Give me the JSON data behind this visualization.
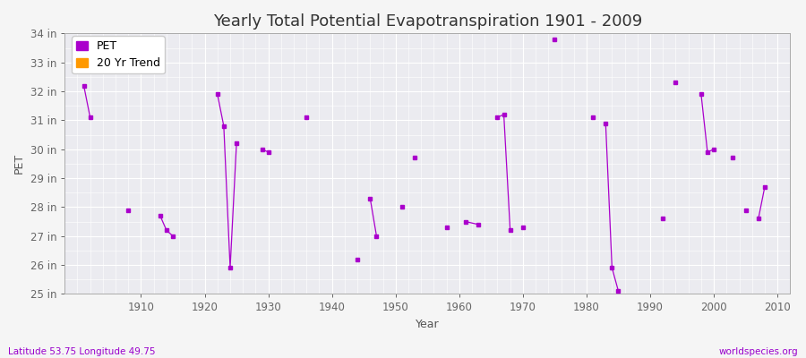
{
  "title": "Yearly Total Potential Evapotranspiration 1901 - 2009",
  "xlabel": "Year",
  "ylabel": "PET",
  "bottom_left": "Latitude 53.75 Longitude 49.75",
  "bottom_right": "worldspecies.org",
  "ylim": [
    25,
    34
  ],
  "xlim": [
    1898,
    2012
  ],
  "yticks": [
    25,
    26,
    27,
    28,
    29,
    30,
    31,
    32,
    33,
    34
  ],
  "ytick_labels": [
    "25 in",
    "26 in",
    "27 in",
    "28 in",
    "29 in",
    "30 in",
    "31 in",
    "32 in",
    "33 in",
    "34 in"
  ],
  "xticks": [
    1910,
    1920,
    1930,
    1940,
    1950,
    1960,
    1970,
    1980,
    1990,
    2000,
    2010
  ],
  "pet_color": "#aa00cc",
  "trend_color": "#ff9900",
  "bg_color": "#ebebf0",
  "fig_bg_color": "#f5f5f5",
  "segments": [
    [
      [
        1901,
        32.2
      ],
      [
        1902,
        31.1
      ]
    ],
    [
      [
        1908,
        27.9
      ]
    ],
    [
      [
        1913,
        27.7
      ],
      [
        1914,
        27.2
      ],
      [
        1915,
        27.0
      ]
    ],
    [
      [
        1922,
        31.9
      ],
      [
        1923,
        30.8
      ],
      [
        1924,
        25.9
      ],
      [
        1925,
        30.2
      ]
    ],
    [
      [
        1929,
        30.0
      ],
      [
        1930,
        29.9
      ]
    ],
    [
      [
        1936,
        31.1
      ]
    ],
    [
      [
        1944,
        26.2
      ]
    ],
    [
      [
        1946,
        28.3
      ],
      [
        1947,
        27.0
      ]
    ],
    [
      [
        1951,
        28.0
      ]
    ],
    [
      [
        1953,
        29.7
      ]
    ],
    [
      [
        1958,
        27.3
      ]
    ],
    [
      [
        1961,
        27.5
      ],
      [
        1963,
        27.4
      ]
    ],
    [
      [
        1966,
        31.1
      ],
      [
        1967,
        31.2
      ],
      [
        1968,
        27.2
      ]
    ],
    [
      [
        1970,
        27.3
      ]
    ],
    [
      [
        1975,
        33.8
      ]
    ],
    [
      [
        1981,
        31.1
      ]
    ],
    [
      [
        1983,
        30.9
      ],
      [
        1984,
        25.9
      ],
      [
        1985,
        25.1
      ]
    ],
    [
      [
        1992,
        27.6
      ]
    ],
    [
      [
        1994,
        32.3
      ]
    ],
    [
      [
        1998,
        31.9
      ],
      [
        1999,
        29.9
      ],
      [
        2000,
        30.0
      ]
    ],
    [
      [
        2003,
        29.7
      ]
    ],
    [
      [
        2005,
        27.9
      ]
    ],
    [
      [
        2007,
        27.6
      ],
      [
        2008,
        28.7
      ]
    ]
  ],
  "title_fontsize": 13,
  "label_fontsize": 9,
  "tick_fontsize": 8.5,
  "annot_fontsize": 7.5
}
